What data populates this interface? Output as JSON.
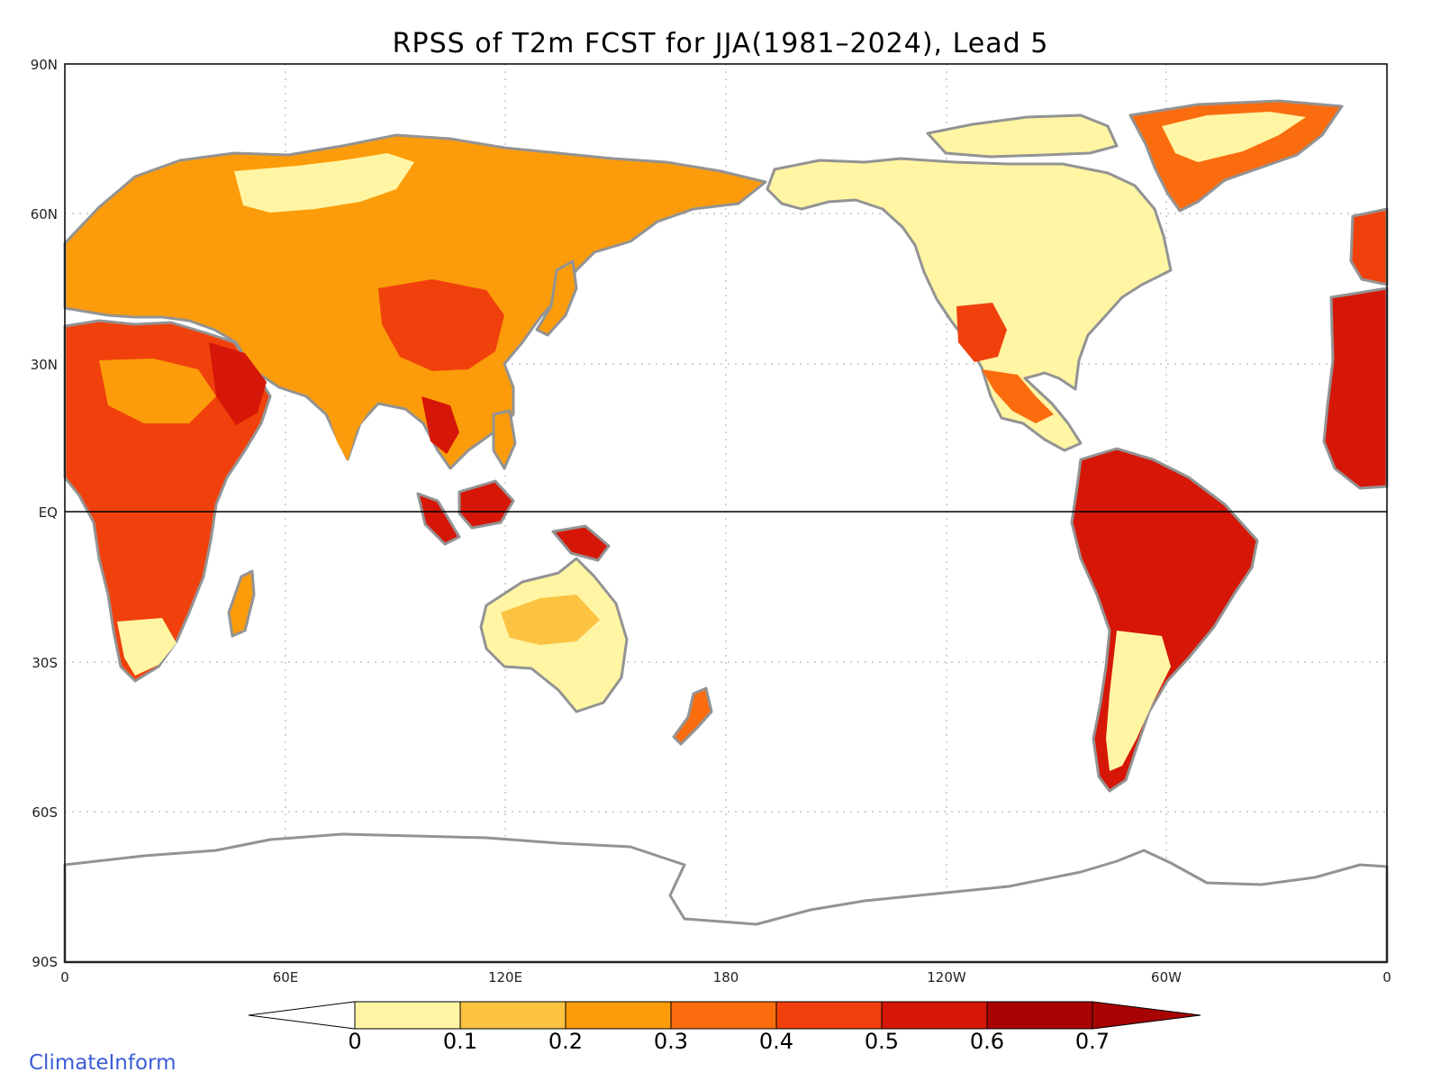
{
  "title": "RPSS of T2m FCST for JJA(1981–2024), Lead 5",
  "credit": "ClimateInform",
  "lat_ticks": [
    "90N",
    "60N",
    "30N",
    "EQ",
    "30S",
    "60S",
    "90S"
  ],
  "lon_ticks": [
    "0",
    "60E",
    "120E",
    "180",
    "120W",
    "60W",
    "0"
  ],
  "colorbar": {
    "labels": [
      "0",
      "0.1",
      "0.2",
      "0.3",
      "0.4",
      "0.5",
      "0.6",
      "0.7"
    ],
    "below_color": "#ffffff",
    "colors": [
      "#fff5a3",
      "#fcc342",
      "#fc9c0a",
      "#fa6c0e",
      "#f0410c",
      "#d61707",
      "#a80303"
    ],
    "above_color": "#a80303"
  },
  "colors": {
    "coastline": "#939393",
    "grid": "#b8b8b8",
    "frame": "#000000"
  },
  "projection": "cylindrical-equidistant, centered 180"
}
